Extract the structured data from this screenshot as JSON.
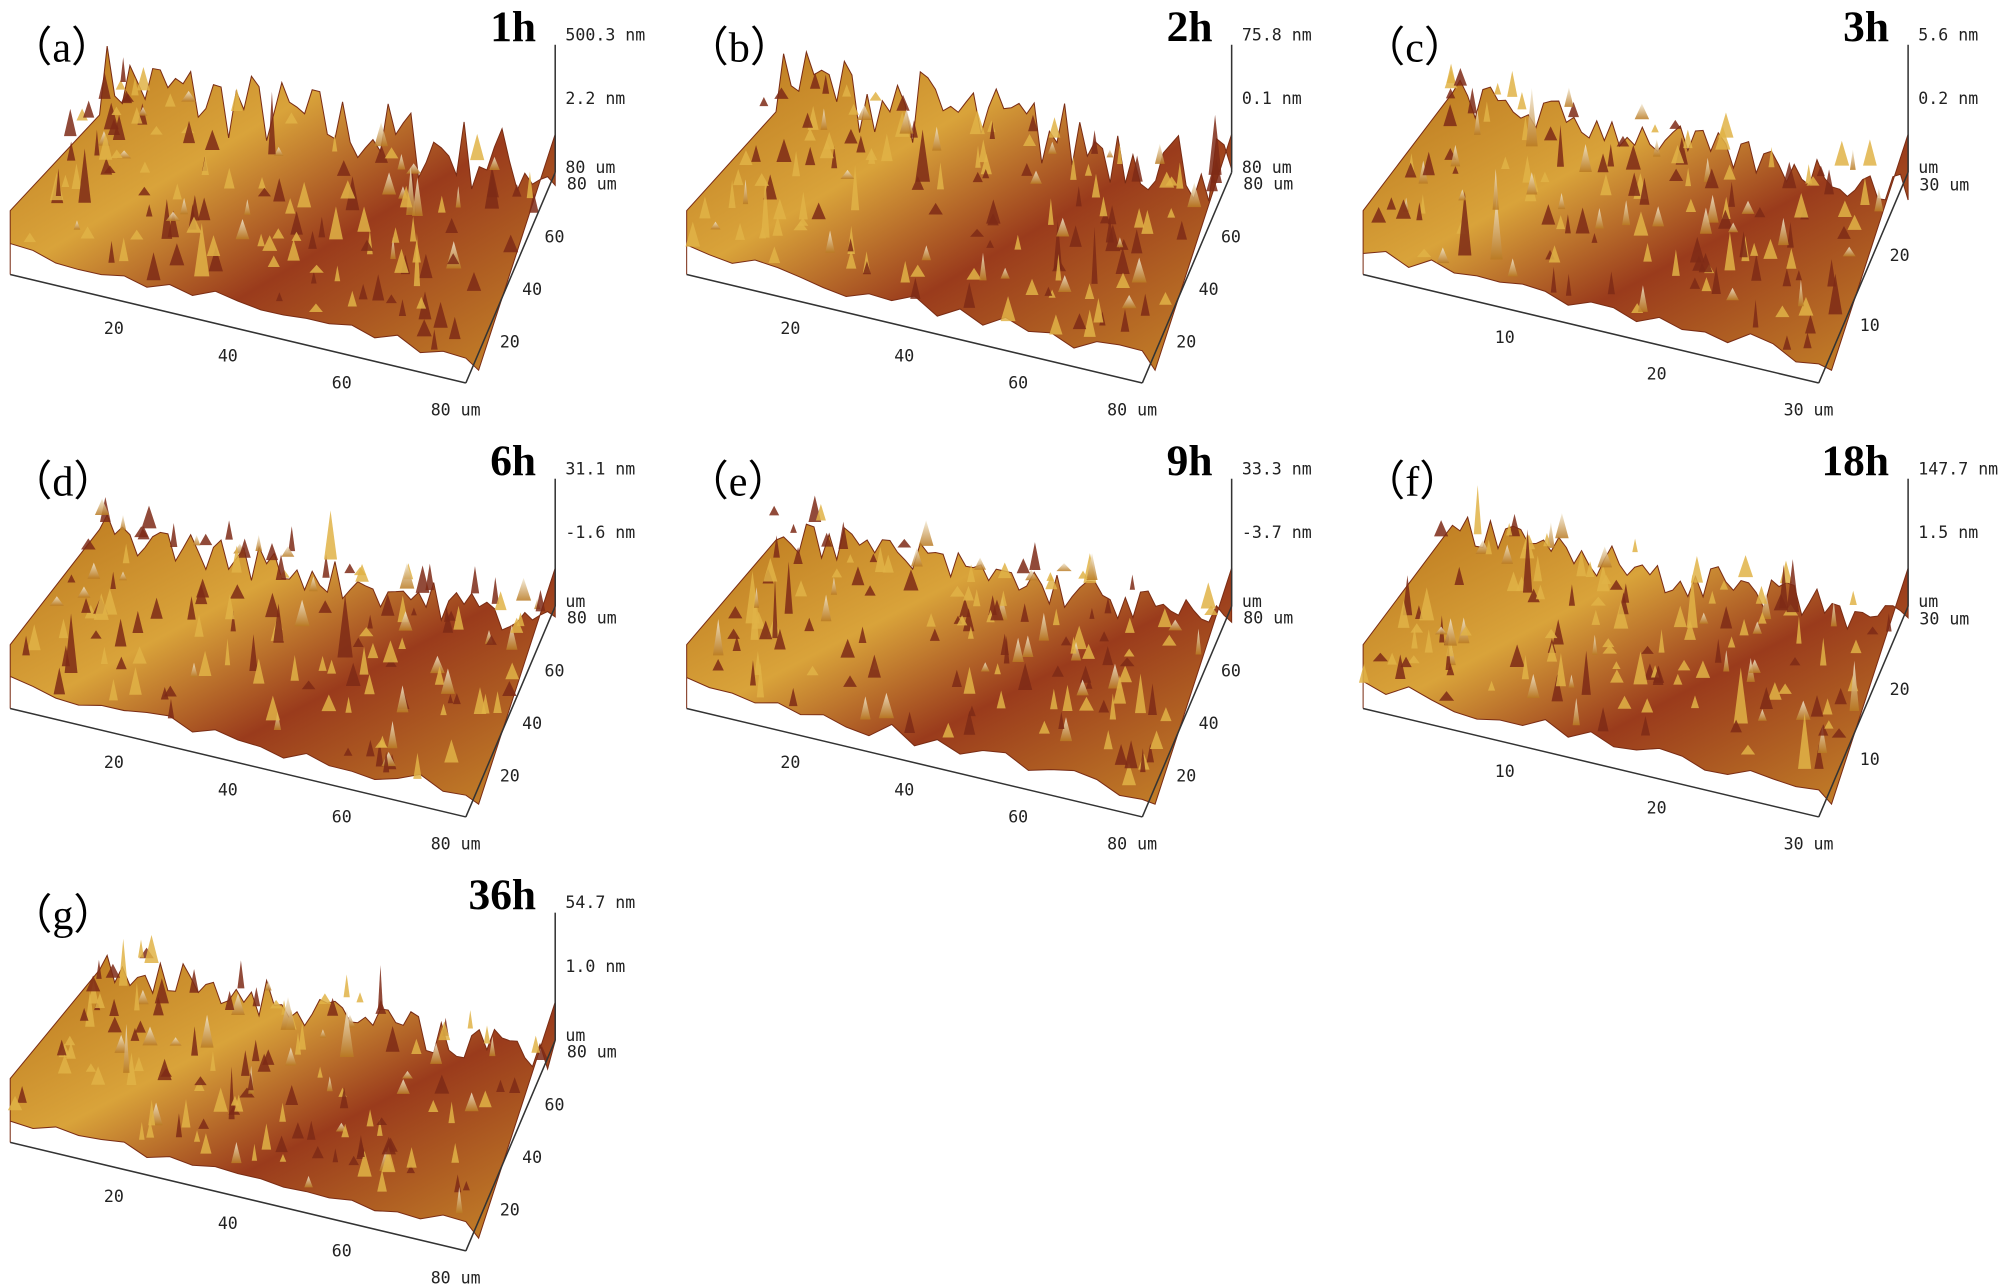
{
  "panels": [
    {
      "label": "（a）",
      "time": "1h",
      "z_labels": [
        "500.3 nm",
        "2.2 nm",
        "80 um"
      ],
      "y_labels": [
        "80 um",
        "60",
        "40",
        "20"
      ],
      "x_labels": [
        "20",
        "40",
        "60",
        "80 um"
      ]
    },
    {
      "label": "（b）",
      "time": "2h",
      "z_labels": [
        "75.8 nm",
        "0.1 nm",
        "80 um"
      ],
      "y_labels": [
        "80 um",
        "60",
        "40",
        "20"
      ],
      "x_labels": [
        "20",
        "40",
        "60",
        "80 um"
      ]
    },
    {
      "label": "（c）",
      "time": "3h",
      "z_labels": [
        "5.6 nm",
        "0.2 nm",
        "um"
      ],
      "y_labels": [
        "30 um",
        "20",
        "10"
      ],
      "x_labels": [
        "10",
        "20",
        "30 um"
      ]
    },
    {
      "label": "（d）",
      "time": "6h",
      "z_labels": [
        "31.1 nm",
        "-1.6 nm",
        "um"
      ],
      "y_labels": [
        "80 um",
        "60",
        "40",
        "20"
      ],
      "x_labels": [
        "20",
        "40",
        "60",
        "80 um"
      ]
    },
    {
      "label": "（e）",
      "time": "9h",
      "z_labels": [
        "33.3 nm",
        "-3.7 nm",
        "um"
      ],
      "y_labels": [
        "80 um",
        "60",
        "40",
        "20"
      ],
      "x_labels": [
        "20",
        "40",
        "60",
        "80 um"
      ]
    },
    {
      "label": "（f）",
      "time": "18h",
      "z_labels": [
        "147.7 nm",
        "1.5 nm",
        "um"
      ],
      "y_labels": [
        "30 um",
        "20",
        "10"
      ],
      "x_labels": [
        "10",
        "20",
        "30 um"
      ]
    },
    {
      "label": "（g）",
      "time": "36h",
      "z_labels": [
        "54.7 nm",
        "1.0 nm",
        "um"
      ],
      "y_labels": [
        "80 um",
        "60",
        "40",
        "20"
      ],
      "x_labels": [
        "20",
        "40",
        "60",
        "80 um"
      ]
    }
  ]
}
